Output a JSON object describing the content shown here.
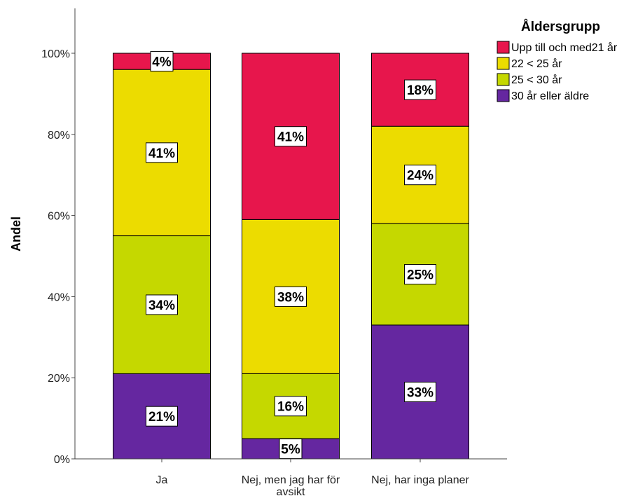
{
  "chart_data": {
    "type": "bar",
    "stacked": true,
    "categories": [
      [
        "Ja"
      ],
      [
        "Nej, men jag har för",
        "avsikt"
      ],
      [
        "Nej, har inga planer"
      ]
    ],
    "ylabel": "Andel",
    "ylim": [
      0,
      1
    ],
    "yticks": [
      0,
      0.2,
      0.4,
      0.6,
      0.8,
      1.0
    ],
    "ytick_labels": [
      "0%",
      "20%",
      "40%",
      "60%",
      "80%",
      "100%"
    ],
    "legend_title": "Åldersgrupp",
    "legend_position": "top-right",
    "grid": false,
    "series": [
      {
        "name": "30 år eller äldre",
        "color": "#6527a0",
        "values": [
          0.21,
          0.05,
          0.33
        ],
        "labels": [
          "21%",
          "5%",
          "33%"
        ]
      },
      {
        "name": "25 < 30 år",
        "color": "#c5d800",
        "values": [
          0.34,
          0.16,
          0.25
        ],
        "labels": [
          "34%",
          "16%",
          "25%"
        ]
      },
      {
        "name": "22 < 25 år",
        "color": "#ecdc00",
        "values": [
          0.41,
          0.38,
          0.24
        ],
        "labels": [
          "41%",
          "38%",
          "24%"
        ]
      },
      {
        "name": "Upp till och med21 år",
        "color": "#e7164c",
        "values": [
          0.04,
          0.41,
          0.18
        ],
        "labels": [
          "4%",
          "41%",
          "18%"
        ]
      }
    ]
  }
}
